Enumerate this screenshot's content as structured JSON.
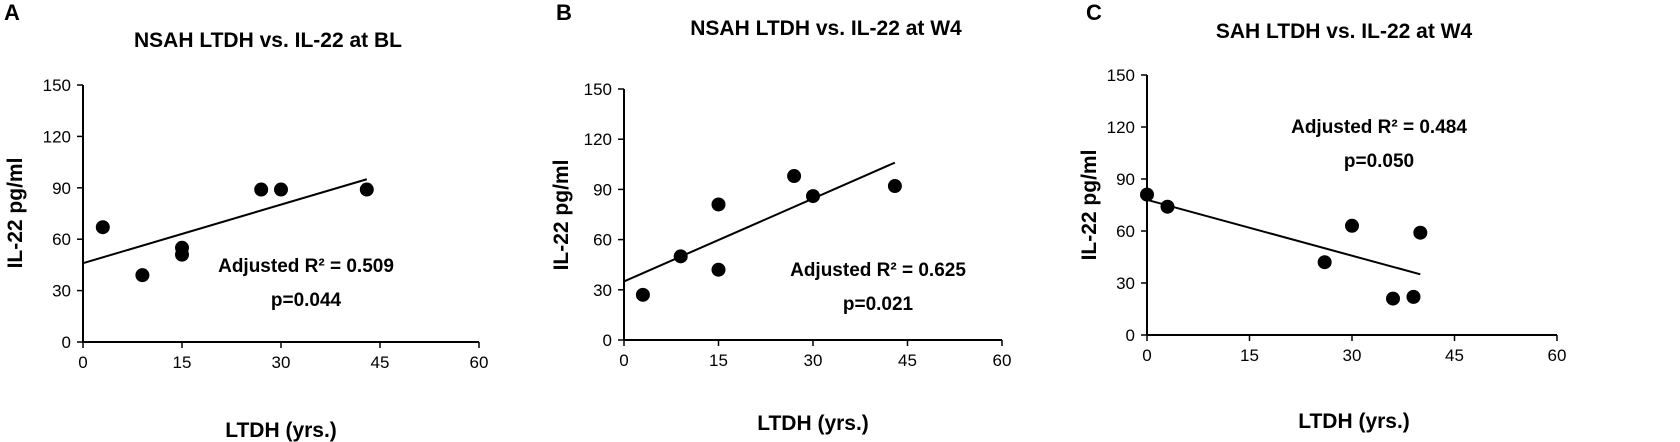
{
  "chart_data": [
    {
      "panel": "A",
      "type": "scatter",
      "title": "NSAH LTDH vs. IL-22 at BL",
      "xlabel": "LTDH (yrs.)",
      "ylabel": "IL-22 pg/ml",
      "xlim": [
        0,
        60
      ],
      "ylim": [
        0,
        150
      ],
      "xticks": [
        0,
        15,
        30,
        45,
        60
      ],
      "yticks": [
        0,
        30,
        60,
        90,
        120,
        150
      ],
      "grid": false,
      "points": [
        {
          "x": 3,
          "y": 67
        },
        {
          "x": 9,
          "y": 39
        },
        {
          "x": 15,
          "y": 55
        },
        {
          "x": 15,
          "y": 51
        },
        {
          "x": 27,
          "y": 89
        },
        {
          "x": 30,
          "y": 89
        },
        {
          "x": 43,
          "y": 89
        }
      ],
      "trendline": {
        "x": [
          0,
          43
        ],
        "y": [
          46,
          95
        ]
      },
      "annotation": {
        "r2": "Adjusted R² = 0.509",
        "p": "p=0.044"
      }
    },
    {
      "panel": "B",
      "type": "scatter",
      "title": "NSAH LTDH vs. IL-22 at W4",
      "xlabel": "LTDH (yrs.)",
      "ylabel": "IL-22 pg/ml",
      "xlim": [
        0,
        60
      ],
      "ylim": [
        0,
        150
      ],
      "xticks": [
        0,
        15,
        30,
        45,
        60
      ],
      "yticks": [
        0,
        30,
        60,
        90,
        120,
        150
      ],
      "grid": false,
      "points": [
        {
          "x": 3,
          "y": 27
        },
        {
          "x": 9,
          "y": 50
        },
        {
          "x": 15,
          "y": 81
        },
        {
          "x": 15,
          "y": 42
        },
        {
          "x": 27,
          "y": 98
        },
        {
          "x": 30,
          "y": 86
        },
        {
          "x": 43,
          "y": 92
        }
      ],
      "trendline": {
        "x": [
          0,
          43
        ],
        "y": [
          35,
          106
        ]
      },
      "annotation": {
        "r2": "Adjusted R² = 0.625",
        "p": "p=0.021"
      }
    },
    {
      "panel": "C",
      "type": "scatter",
      "title": "SAH LTDH vs. IL-22 at W4",
      "xlabel": "LTDH (yrs.)",
      "ylabel": "IL-22 pg/ml",
      "xlim": [
        0,
        60
      ],
      "ylim": [
        0,
        150
      ],
      "xticks": [
        0,
        15,
        30,
        45,
        60
      ],
      "yticks": [
        0,
        30,
        60,
        90,
        120,
        150
      ],
      "grid": false,
      "points": [
        {
          "x": 0,
          "y": 81
        },
        {
          "x": 3,
          "y": 74
        },
        {
          "x": 26,
          "y": 42
        },
        {
          "x": 30,
          "y": 63
        },
        {
          "x": 36,
          "y": 21
        },
        {
          "x": 39,
          "y": 22
        },
        {
          "x": 40,
          "y": 59
        }
      ],
      "trendline": {
        "x": [
          0,
          40
        ],
        "y": [
          78,
          35
        ]
      },
      "annotation": {
        "r2": "Adjusted R² = 0.484",
        "p": "p=0.050"
      }
    }
  ]
}
